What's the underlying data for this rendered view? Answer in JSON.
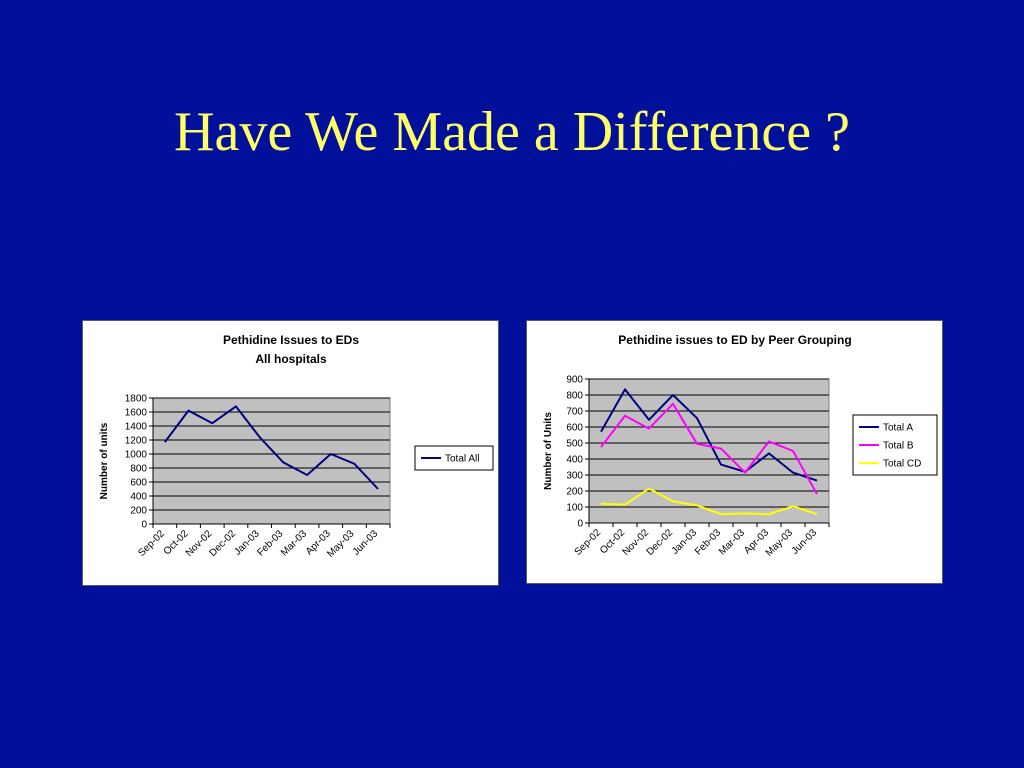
{
  "slide": {
    "title": "Have We Made a Difference ?"
  },
  "chart_data": [
    {
      "type": "line",
      "title": "Pethidine Issues to EDs",
      "subtitle": "All hospitals",
      "xlabel": "",
      "ylabel": "Number of units",
      "ylim": [
        0,
        1800
      ],
      "ytick_step": 200,
      "grid": true,
      "legend_position": "right",
      "categories": [
        "Sep-02",
        "Oct-02",
        "Nov-02",
        "Dec-02",
        "Jan-03",
        "Feb-03",
        "Mar-03",
        "Apr-03",
        "May-03",
        "Jun-03"
      ],
      "series": [
        {
          "name": "Total All",
          "color": "#000080",
          "values": [
            1170,
            1620,
            1440,
            1680,
            1240,
            880,
            700,
            1000,
            860,
            500
          ]
        }
      ]
    },
    {
      "type": "line",
      "title": "Pethidine issues to ED by Peer Grouping",
      "xlabel": "",
      "ylabel": "Number of Units",
      "ylim": [
        0,
        900
      ],
      "ytick_step": 100,
      "grid": true,
      "legend_position": "right",
      "categories": [
        "Sep-02",
        "Oct-02",
        "Nov-02",
        "Dec-02",
        "Jan-03",
        "Feb-03",
        "Mar-03",
        "Apr-03",
        "May-03",
        "Jun-03"
      ],
      "series": [
        {
          "name": "Total A",
          "color": "#000080",
          "values": [
            570,
            835,
            645,
            800,
            655,
            365,
            320,
            435,
            315,
            265
          ]
        },
        {
          "name": "Total B",
          "color": "#ff00ff",
          "values": [
            475,
            670,
            590,
            745,
            495,
            465,
            315,
            510,
            450,
            180
          ]
        },
        {
          "name": "Total CD",
          "color": "#ffff00",
          "values": [
            120,
            115,
            215,
            135,
            110,
            55,
            60,
            55,
            105,
            55
          ]
        }
      ]
    }
  ]
}
